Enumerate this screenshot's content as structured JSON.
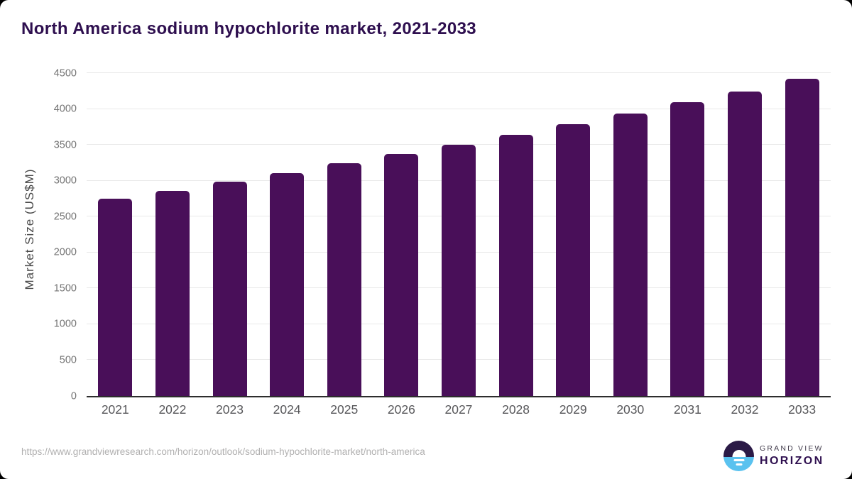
{
  "title": "North America sodium hypochlorite market, 2021-2033",
  "chart_data": {
    "type": "bar",
    "title": "North America sodium hypochlorite market, 2021-2033",
    "categories": [
      "2021",
      "2022",
      "2023",
      "2024",
      "2025",
      "2026",
      "2027",
      "2028",
      "2029",
      "2030",
      "2031",
      "2032",
      "2033"
    ],
    "values": [
      2750,
      2860,
      2990,
      3110,
      3240,
      3370,
      3500,
      3640,
      3790,
      3940,
      4090,
      4245,
      4420
    ],
    "xlabel": "",
    "ylabel": "Market Size (US$M)",
    "ylim": [
      0,
      4500
    ],
    "ytick_step": 500,
    "grid": true,
    "legend": false,
    "bar_color": "#490f59"
  },
  "footer": {
    "source_url": "https://www.grandviewresearch.com/horizon/outlook/sodium-hypochlorite-market/north-america",
    "logo": {
      "top_text": "GRAND VIEW",
      "bottom_text": "HORIZON"
    }
  },
  "colors": {
    "title_text": "#2e0f4f",
    "bar": "#490f59",
    "axis_line": "#2d2d2d",
    "gridline": "#e9e9e9",
    "y_tick_text": "#747474",
    "x_tick_text": "#57575a",
    "url_text": "#b1b0b0",
    "logo_dark": "#2b1a46",
    "logo_blue": "#5ac2ef"
  }
}
